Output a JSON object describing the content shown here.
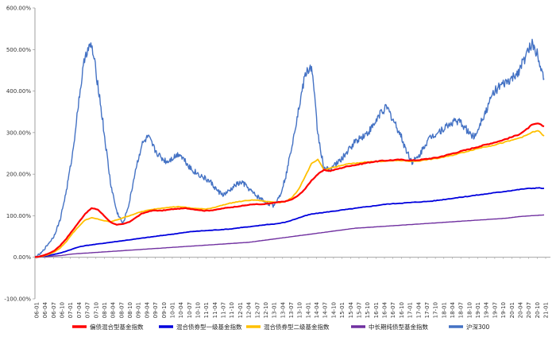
{
  "chart_data": {
    "type": "line",
    "title": "",
    "xlabel": "",
    "ylabel": "",
    "ylim": [
      -100,
      600
    ],
    "y_ticks": [
      -100,
      0,
      100,
      200,
      300,
      400,
      500,
      600
    ],
    "y_tick_labels": [
      "-100.00%",
      "0.00%",
      "100.00%",
      "200.00%",
      "300.00%",
      "400.00%",
      "500.00%",
      "600.00%"
    ],
    "x_tick_labels": [
      "06-01",
      "06-04",
      "06-07",
      "06-10",
      "07-01",
      "07-04",
      "07-07",
      "07-10",
      "08-01",
      "08-04",
      "08-07",
      "08-10",
      "09-01",
      "09-04",
      "09-07",
      "09-10",
      "10-01",
      "10-04",
      "10-07",
      "10-10",
      "11-01",
      "11-04",
      "11-07",
      "11-10",
      "12-01",
      "12-04",
      "12-07",
      "12-10",
      "13-01",
      "13-04",
      "13-07",
      "13-10",
      "14-01",
      "14-04",
      "14-07",
      "14-10",
      "15-01",
      "15-04",
      "15-07",
      "15-10",
      "16-01",
      "16-04",
      "16-07",
      "16-10",
      "17-01",
      "17-04",
      "17-07",
      "17-10",
      "18-01",
      "18-04",
      "18-07",
      "18-10",
      "19-01",
      "19-04",
      "19-07",
      "19-10",
      "20-01",
      "20-04",
      "20-07",
      "20-10",
      "21-01"
    ],
    "grid": false,
    "legend_position": "bottom",
    "series": [
      {
        "name": "偏债混合型基金指数",
        "color": "#ff0000",
        "values": [
          0,
          3,
          8,
          15,
          28,
          45,
          65,
          85,
          105,
          118,
          115,
          100,
          85,
          78,
          80,
          85,
          95,
          105,
          110,
          113,
          112,
          114,
          116,
          117,
          118,
          116,
          114,
          112,
          113,
          115,
          118,
          120,
          122,
          124,
          126,
          128,
          127,
          129,
          131,
          133,
          135,
          140,
          150,
          165,
          185,
          200,
          210,
          208,
          212,
          216,
          220,
          222,
          225,
          228,
          230,
          232,
          233,
          234,
          235,
          234,
          233,
          234,
          236,
          238,
          240,
          244,
          248,
          252,
          256,
          260,
          264,
          268,
          272,
          276,
          280,
          285,
          290,
          296,
          305,
          318,
          322,
          315
        ]
      },
      {
        "name": "混合债券型一级基金指数",
        "color": "#0000dd",
        "values": [
          0,
          2,
          4,
          7,
          10,
          15,
          20,
          25,
          28,
          30,
          32,
          34,
          36,
          38,
          40,
          42,
          44,
          46,
          48,
          50,
          52,
          54,
          56,
          58,
          60,
          62,
          63,
          64,
          65,
          66,
          67,
          68,
          70,
          72,
          73,
          75,
          77,
          79,
          80,
          82,
          85,
          90,
          95,
          100,
          104,
          106,
          108,
          110,
          112,
          114,
          116,
          118,
          120,
          122,
          124,
          126,
          128,
          129,
          130,
          131,
          132,
          133,
          134,
          135,
          137,
          139,
          141,
          143,
          145,
          147,
          149,
          151,
          153,
          155,
          157,
          159,
          161,
          163,
          165,
          166,
          167,
          166
        ]
      },
      {
        "name": "混合债券型二级基金指数",
        "color": "#ffc000",
        "values": [
          0,
          2,
          6,
          12,
          22,
          38,
          58,
          75,
          90,
          95,
          92,
          88,
          85,
          90,
          95,
          100,
          105,
          110,
          113,
          116,
          118,
          120,
          121,
          122,
          120,
          118,
          117,
          116,
          118,
          122,
          126,
          130,
          133,
          135,
          137,
          138,
          136,
          134,
          133,
          132,
          135,
          145,
          165,
          195,
          225,
          235,
          210,
          215,
          218,
          222,
          225,
          226,
          228,
          230,
          230,
          231,
          232,
          232,
          233,
          232,
          231,
          232,
          234,
          236,
          238,
          241,
          244,
          248,
          252,
          256,
          260,
          264,
          267,
          270,
          274,
          278,
          282,
          287,
          292,
          300,
          305,
          292
        ]
      },
      {
        "name": "中长期纯债型基金指数",
        "color": "#7030a0",
        "values": [
          0,
          1,
          2,
          3,
          4,
          6,
          8,
          9,
          10,
          11,
          12,
          13,
          14,
          15,
          16,
          17,
          18,
          19,
          20,
          21,
          22,
          23,
          24,
          25,
          26,
          27,
          28,
          29,
          30,
          31,
          32,
          33,
          34,
          35,
          36,
          38,
          40,
          42,
          44,
          46,
          48,
          50,
          52,
          54,
          56,
          58,
          60,
          62,
          64,
          66,
          68,
          70,
          71,
          72,
          73,
          74,
          75,
          76,
          77,
          78,
          79,
          80,
          81,
          82,
          83,
          84,
          85,
          86,
          87,
          88,
          89,
          90,
          91,
          92,
          93,
          94,
          96,
          98,
          99,
          100,
          101,
          102
        ]
      },
      {
        "name": "沪深300",
        "color": "#4472c4",
        "values": [
          0,
          10,
          30,
          50,
          90,
          160,
          250,
          380,
          490,
          510,
          420,
          300,
          180,
          110,
          80,
          130,
          210,
          270,
          290,
          260,
          240,
          230,
          240,
          250,
          230,
          210,
          200,
          190,
          180,
          160,
          150,
          160,
          175,
          180,
          165,
          150,
          140,
          130,
          125,
          150,
          200,
          280,
          360,
          440,
          460,
          300,
          210,
          215,
          225,
          240,
          260,
          280,
          290,
          300,
          320,
          350,
          360,
          330,
          300,
          260,
          230,
          240,
          270,
          290,
          300,
          310,
          320,
          330,
          320,
          300,
          290,
          330,
          360,
          400,
          410,
          420,
          430,
          450,
          480,
          515,
          490,
          430
        ]
      }
    ]
  }
}
